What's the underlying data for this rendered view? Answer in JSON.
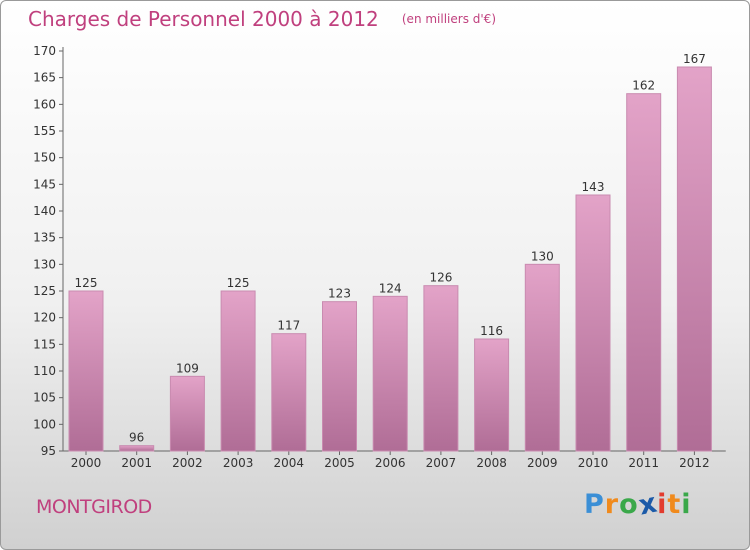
{
  "chart_data": {
    "type": "bar",
    "title": "Charges de Personnel 2000 à 2012",
    "subtitle": "(en milliers d'€)",
    "categories": [
      "2000",
      "2001",
      "2002",
      "2003",
      "2004",
      "2005",
      "2006",
      "2007",
      "2008",
      "2009",
      "2010",
      "2011",
      "2012"
    ],
    "values": [
      125,
      96,
      109,
      125,
      117,
      123,
      124,
      126,
      116,
      130,
      143,
      162,
      167
    ],
    "ylim": [
      95,
      170
    ],
    "yticks": [
      95,
      100,
      105,
      110,
      115,
      120,
      125,
      130,
      135,
      140,
      145,
      150,
      155,
      160,
      165,
      170
    ],
    "grid": false,
    "bar_color": "#b06d96",
    "bar_color_light": "#e3a3c8",
    "title_color": "#c0407e"
  },
  "commune": "MONTGIROD",
  "brand": {
    "letters": [
      "P",
      "r",
      "o",
      "x",
      "i",
      "t",
      "i"
    ],
    "colors": [
      "#3b8fd6",
      "#f08a1c",
      "#3aa84a",
      "#1b5aa8",
      "#e23b2e",
      "#f08a1c",
      "#3aa84a"
    ]
  }
}
